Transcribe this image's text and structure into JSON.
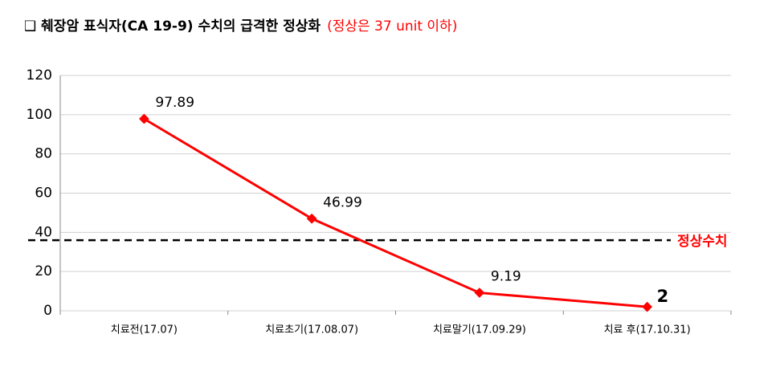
{
  "chart_data": {
    "type": "line",
    "title": "❑ 췌장암 표식자(CA 19-9) 수치의 급격한 정상화",
    "subtitle": "(정상은 37 unit 이하)",
    "categories": [
      "치료전(17.07)",
      "치료초기(17.08.07)",
      "치료말기(17.09.29)",
      "치료 후(17.10.31)"
    ],
    "series": [
      {
        "name": "CA 19-9",
        "color": "#ff0000",
        "values": [
          97.89,
          46.99,
          9.19,
          2
        ]
      }
    ],
    "reference_line": {
      "label": "정상수치",
      "value": 36,
      "color": "#000000"
    },
    "ylim": [
      0,
      120
    ],
    "yticks": [
      0,
      20,
      40,
      60,
      80,
      100,
      120
    ],
    "grid": true
  }
}
